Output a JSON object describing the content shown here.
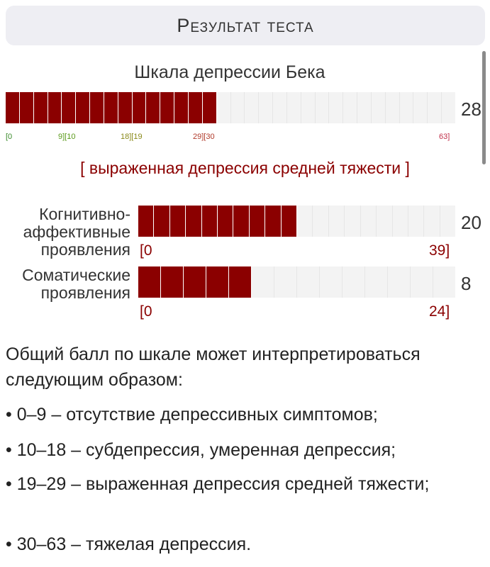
{
  "header": {
    "title": "Результат теста"
  },
  "main_scale": {
    "title": "Шкала депрессии Бека",
    "score": "28",
    "segments": 32,
    "filled": 15,
    "ticks": [
      {
        "text": "[0",
        "color": "#3a8a2a"
      },
      {
        "text": "9][10",
        "color": "#5a9a1a"
      },
      {
        "text": "18][19",
        "color": "#8a8a1a"
      },
      {
        "text": "29][30",
        "color": "#b03a2a"
      },
      {
        "text": "63]",
        "color": "#c0304a"
      }
    ],
    "verdict": "[ выраженная депрессия средней тяжести ]"
  },
  "subscales": [
    {
      "label_lines": [
        "Когнитивно-",
        "аффективные",
        "проявления"
      ],
      "score": "20",
      "min": "[0",
      "max": "39]",
      "segments": 20,
      "filled": 10
    },
    {
      "label_lines": [
        "Соматические",
        "проявления"
      ],
      "score": "8",
      "min": "[0",
      "max": "24]",
      "segments": 14,
      "filled": 5
    }
  ],
  "interpretation": {
    "intro": "Общий балл по шкале может интерпретироваться следующим образом:",
    "items": [
      "• 0–9 – отсутствие депрессивных симптомов;",
      "• 10–18 – субдепрессия, умеренная депрессия;",
      "• 19–29 – выраженная депрессия средней тяжести;",
      "• 30–63 – тяжелая депрессия."
    ]
  },
  "colors": {
    "accent": "#8b0000",
    "header_bg": "#eeeef3",
    "bar_empty": "#f3f3f3"
  }
}
